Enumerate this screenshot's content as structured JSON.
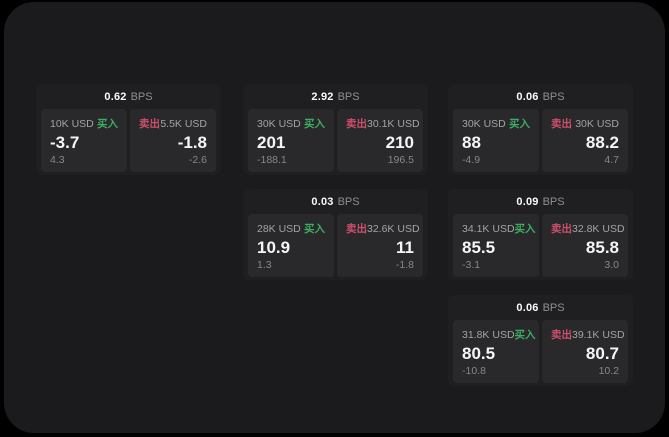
{
  "colors": {
    "buy": "#3eac63",
    "sell": "#cc4f6b",
    "panel_bg": "#1b1b1d",
    "card_bg": "#1f1f21",
    "subpanel_bg": "#29292b"
  },
  "labels": {
    "buy": "买入",
    "sell": "卖出",
    "bps": "BPS"
  },
  "cards": [
    {
      "col": 0,
      "row": 0,
      "bps": "0.62",
      "buy": {
        "size": "10K USD",
        "value": "-3.7",
        "delta": "4.3"
      },
      "sell": {
        "size": "5.5K USD",
        "value": "-1.8",
        "delta": "-2.6"
      }
    },
    {
      "col": 1,
      "row": 0,
      "bps": "2.92",
      "buy": {
        "size": "30K USD",
        "value": "201",
        "delta": "-188.1"
      },
      "sell": {
        "size": "30.1K USD",
        "value": "210",
        "delta": "196.5"
      }
    },
    {
      "col": 2,
      "row": 0,
      "bps": "0.06",
      "buy": {
        "size": "30K USD",
        "value": "88",
        "delta": "-4.9"
      },
      "sell": {
        "size": "30K USD",
        "value": "88.2",
        "delta": "4.7"
      }
    },
    {
      "col": 1,
      "row": 1,
      "bps": "0.03",
      "buy": {
        "size": "28K USD",
        "value": "10.9",
        "delta": "1.3"
      },
      "sell": {
        "size": "32.6K USD",
        "value": "11",
        "delta": "-1.8"
      }
    },
    {
      "col": 2,
      "row": 1,
      "bps": "0.09",
      "buy": {
        "size": "34.1K USD",
        "value": "85.5",
        "delta": "-3.1"
      },
      "sell": {
        "size": "32.8K USD",
        "value": "85.8",
        "delta": "3.0"
      }
    },
    {
      "col": 2,
      "row": 2,
      "bps": "0.06",
      "buy": {
        "size": "31.8K USD",
        "value": "80.5",
        "delta": "-10.8"
      },
      "sell": {
        "size": "39.1K USD",
        "value": "80.7",
        "delta": "10.2"
      }
    }
  ]
}
